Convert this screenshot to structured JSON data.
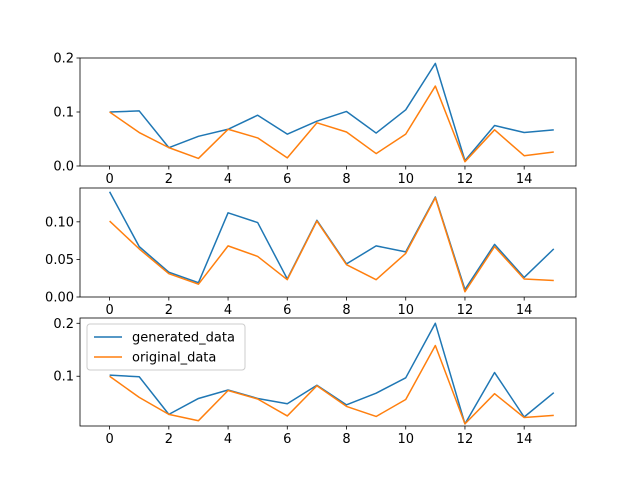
{
  "chart_data": [
    {
      "type": "line",
      "x": [
        0,
        1,
        2,
        3,
        4,
        5,
        6,
        7,
        8,
        9,
        10,
        11,
        12,
        13,
        14,
        15
      ],
      "xlim": [
        -1.0,
        15.75
      ],
      "ylim": [
        0.0,
        0.2
      ],
      "x_ticks": [
        "0",
        "2",
        "4",
        "6",
        "8",
        "10",
        "12",
        "14"
      ],
      "y_ticks": [
        "0.0",
        "0.1",
        "0.2"
      ],
      "grid": false,
      "series": [
        {
          "name": "generated_data",
          "color": "#1f77b4",
          "values": [
            0.1,
            0.102,
            0.034,
            0.055,
            0.068,
            0.094,
            0.059,
            0.083,
            0.101,
            0.061,
            0.104,
            0.19,
            0.01,
            0.075,
            0.062,
            0.067
          ]
        },
        {
          "name": "original_data",
          "color": "#ff7f0e",
          "values": [
            0.1,
            0.062,
            0.034,
            0.014,
            0.068,
            0.052,
            0.015,
            0.08,
            0.063,
            0.023,
            0.059,
            0.148,
            0.008,
            0.067,
            0.019,
            0.026
          ]
        }
      ]
    },
    {
      "type": "line",
      "x": [
        0,
        1,
        2,
        3,
        4,
        5,
        6,
        7,
        8,
        9,
        10,
        11,
        12,
        13,
        14,
        15
      ],
      "xlim": [
        -1.0,
        15.75
      ],
      "ylim": [
        0.0,
        0.145
      ],
      "x_ticks": [
        "0",
        "2",
        "4",
        "6",
        "8",
        "10",
        "12",
        "14"
      ],
      "y_ticks": [
        "0.00",
        "0.05",
        "0.10"
      ],
      "grid": false,
      "series": [
        {
          "name": "generated_data",
          "color": "#1f77b4",
          "values": [
            0.14,
            0.067,
            0.033,
            0.019,
            0.112,
            0.099,
            0.024,
            0.102,
            0.044,
            0.068,
            0.06,
            0.133,
            0.01,
            0.07,
            0.026,
            0.064
          ]
        },
        {
          "name": "original_data",
          "color": "#ff7f0e",
          "values": [
            0.101,
            0.064,
            0.031,
            0.017,
            0.068,
            0.054,
            0.023,
            0.101,
            0.043,
            0.023,
            0.058,
            0.132,
            0.007,
            0.067,
            0.024,
            0.022
          ]
        }
      ]
    },
    {
      "type": "line",
      "x": [
        0,
        1,
        2,
        3,
        4,
        5,
        6,
        7,
        8,
        9,
        10,
        11,
        12,
        13,
        14,
        15
      ],
      "xlim": [
        -1.0,
        15.75
      ],
      "ylim": [
        0.006,
        0.21
      ],
      "x_ticks": [
        "0",
        "2",
        "4",
        "6",
        "8",
        "10",
        "12",
        "14"
      ],
      "y_ticks": [
        "0.1",
        "0.2"
      ],
      "grid": false,
      "legend": "upper-left",
      "series": [
        {
          "name": "generated_data",
          "color": "#1f77b4",
          "values": [
            0.102,
            0.099,
            0.028,
            0.058,
            0.074,
            0.058,
            0.048,
            0.083,
            0.046,
            0.068,
            0.097,
            0.2,
            0.01,
            0.107,
            0.023,
            0.069
          ]
        },
        {
          "name": "original_data",
          "color": "#ff7f0e",
          "values": [
            0.1,
            0.06,
            0.028,
            0.016,
            0.073,
            0.057,
            0.025,
            0.082,
            0.043,
            0.024,
            0.056,
            0.158,
            0.01,
            0.067,
            0.022,
            0.026
          ]
        }
      ]
    }
  ]
}
